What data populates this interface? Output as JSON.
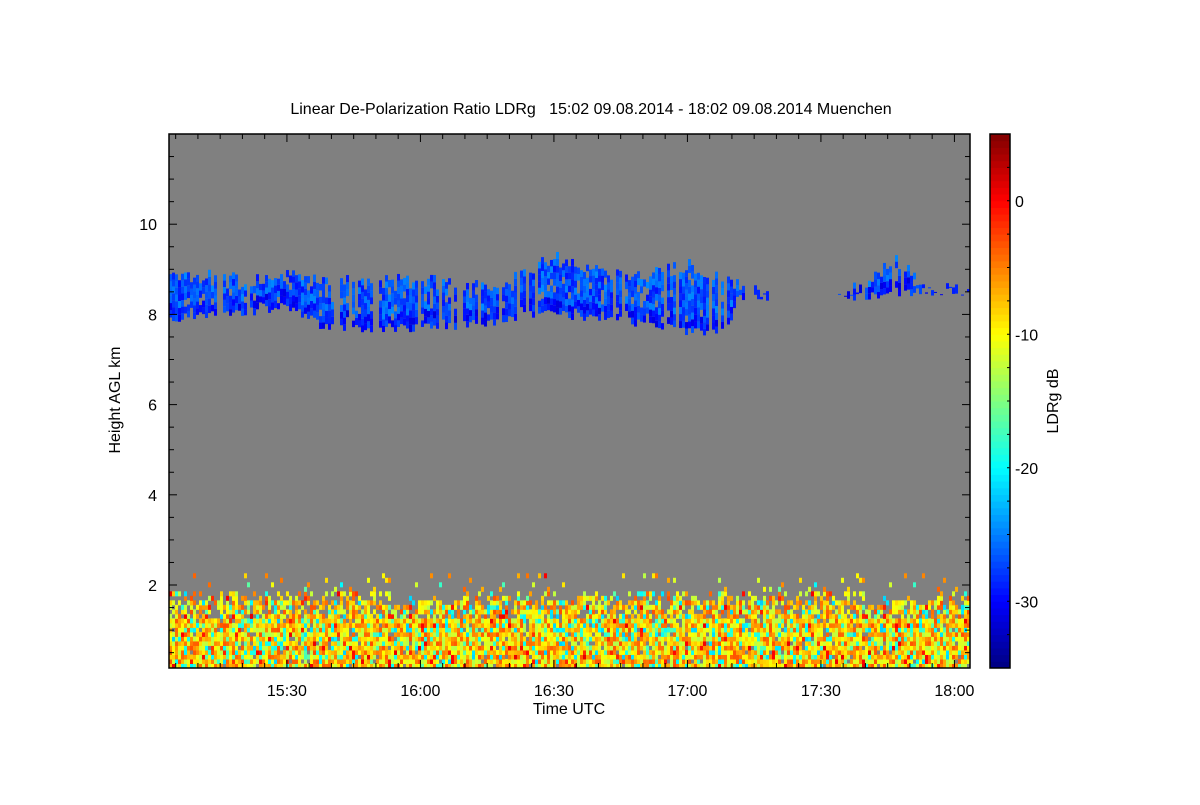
{
  "chart_data": {
    "type": "heatmap",
    "title": "Linear De-Polarization Ratio LDRg   15:02 09.08.2014 - 18:02 09.08.2014 Muenchen",
    "xlabel": "Time UTC",
    "ylabel": "Height AGL km",
    "colorbar_label": "LDRg dB",
    "x_range_minutes_after_1500": [
      3.5,
      183.5
    ],
    "x_ticks": [
      {
        "label": "15:30",
        "min": 30
      },
      {
        "label": "16:00",
        "min": 60
      },
      {
        "label": "16:30",
        "min": 90
      },
      {
        "label": "17:00",
        "min": 120
      },
      {
        "label": "17:30",
        "min": 150
      },
      {
        "label": "18:00",
        "min": 180
      }
    ],
    "ylim": [
      0.16,
      12.0
    ],
    "y_ticks": [
      2,
      4,
      6,
      8,
      10
    ],
    "clim": [
      -35,
      5
    ],
    "c_ticks": [
      0,
      -10,
      -20,
      -30
    ],
    "colormap": "jet",
    "background_color": "#808080",
    "cirrus_layer": {
      "typical_ldr_db": -27,
      "profile": [
        {
          "min": 3.5,
          "base": 7.9,
          "top": 9.0
        },
        {
          "min": 15,
          "base": 8.0,
          "top": 9.0
        },
        {
          "min": 25,
          "base": 8.1,
          "top": 8.9
        },
        {
          "min": 30,
          "base": 8.2,
          "top": 9.0
        },
        {
          "min": 38,
          "base": 7.7,
          "top": 8.9
        },
        {
          "min": 60,
          "base": 7.7,
          "top": 8.9
        },
        {
          "min": 75,
          "base": 7.8,
          "top": 8.8
        },
        {
          "min": 85,
          "base": 8.0,
          "top": 9.2
        },
        {
          "min": 90,
          "base": 8.0,
          "top": 9.4
        },
        {
          "min": 100,
          "base": 7.9,
          "top": 9.1
        },
        {
          "min": 110,
          "base": 7.8,
          "top": 9.0
        },
        {
          "min": 120,
          "base": 7.6,
          "top": 9.3
        },
        {
          "min": 128,
          "base": 7.6,
          "top": 9.0
        },
        {
          "min": 132,
          "base": 8.4,
          "top": 8.8
        },
        {
          "min": 138,
          "base": 8.4,
          "top": 8.6
        },
        {
          "min": 141,
          "base": null,
          "top": null
        },
        {
          "min": 151,
          "base": null,
          "top": null
        },
        {
          "min": 152,
          "base": 8.4,
          "top": 8.6
        },
        {
          "min": 160,
          "base": 8.4,
          "top": 8.9
        },
        {
          "min": 167,
          "base": 8.5,
          "top": 9.4
        },
        {
          "min": 172,
          "base": 8.5,
          "top": 8.8
        },
        {
          "min": 183.5,
          "base": 8.5,
          "top": 8.7
        }
      ]
    },
    "boundary_layer": {
      "top_km": 1.8,
      "ldr_db_range": [
        -22,
        0
      ],
      "typical_ldr_db": -8
    }
  }
}
